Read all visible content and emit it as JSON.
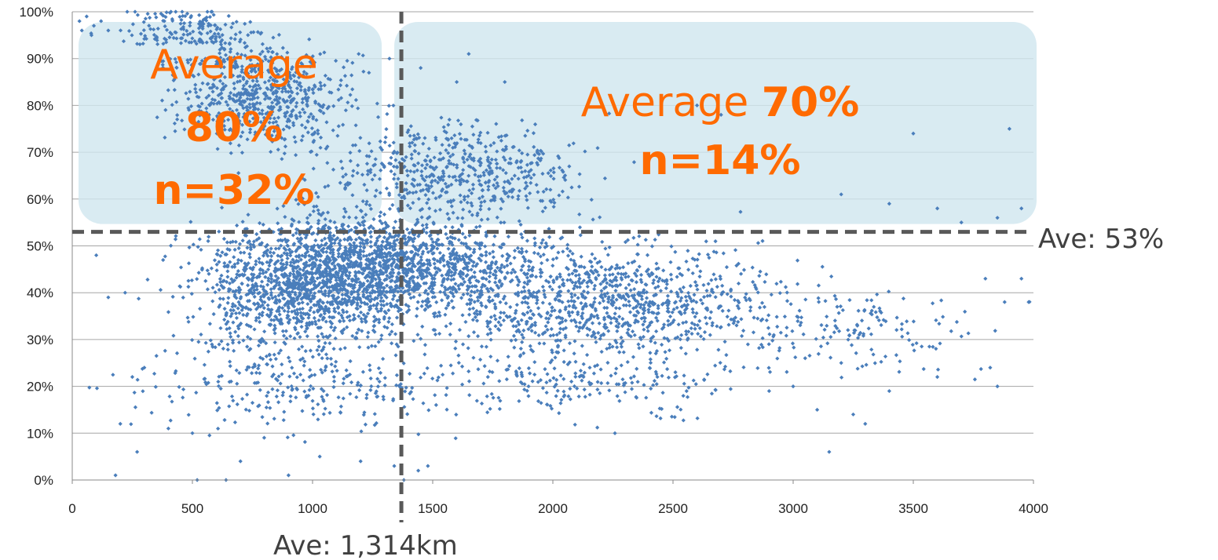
{
  "colors": {
    "point": "#4a7ebb",
    "region_fill": "#cfe6ef",
    "region_text": "#ff6a00",
    "average_line": "#595959",
    "gridline": "#a6a6a6"
  },
  "chart_data": {
    "type": "scatter",
    "title": "",
    "xlabel": "",
    "ylabel": "",
    "xlim": [
      0,
      4000
    ],
    "ylim": [
      0,
      100
    ],
    "x_ticks": [
      0,
      500,
      1000,
      1500,
      2000,
      2500,
      3000,
      3500,
      4000
    ],
    "y_ticks": [
      0,
      10,
      20,
      30,
      40,
      50,
      60,
      70,
      80,
      90,
      100
    ],
    "y_tick_labels": [
      "0%",
      "10%",
      "20%",
      "30%",
      "40%",
      "50%",
      "60%",
      "70%",
      "80%",
      "90%",
      "100%"
    ],
    "grid": true,
    "x_average": 1314,
    "y_average": 53,
    "x_average_label": "Ave: 1,314km",
    "y_average_label": "Ave: 53%",
    "regions": [
      {
        "x_range": [
          0,
          1314
        ],
        "y_range": [
          53,
          100
        ],
        "label_line1": "Average",
        "label_line2": "80%",
        "label_line3": "n=32%"
      },
      {
        "x_range": [
          1314,
          4000
        ],
        "y_range": [
          53,
          100
        ],
        "label_prefix": "Average ",
        "label_value": "70%",
        "label_n": "n=14%"
      }
    ],
    "series": [
      {
        "density_centers": [
          [
            1300,
            45
          ],
          [
            1000,
            40
          ],
          [
            2300,
            40
          ],
          [
            800,
            85
          ],
          [
            600,
            93
          ],
          [
            1500,
            62
          ]
        ],
        "points": [
          [
            30,
            98
          ],
          [
            60,
            99
          ],
          [
            90,
            97
          ],
          [
            120,
            98
          ],
          [
            150,
            96
          ],
          [
            40,
            96
          ],
          [
            80,
            95
          ],
          [
            100,
            48
          ],
          [
            150,
            39
          ],
          [
            180,
            1
          ],
          [
            200,
            12
          ],
          [
            220,
            40
          ],
          [
            250,
            22
          ],
          [
            270,
            6
          ],
          [
            300,
            24
          ],
          [
            400,
            11
          ],
          [
            500,
            10
          ],
          [
            520,
            0
          ],
          [
            640,
            0
          ],
          [
            700,
            4
          ],
          [
            900,
            1
          ],
          [
            1030,
            5
          ],
          [
            1200,
            4
          ],
          [
            1340,
            3
          ],
          [
            1380,
            0
          ],
          [
            1440,
            2
          ],
          [
            1480,
            3
          ],
          [
            1320,
            90
          ],
          [
            1450,
            88
          ],
          [
            1600,
            85
          ],
          [
            1650,
            91
          ],
          [
            1800,
            85
          ],
          [
            2600,
            80
          ],
          [
            2700,
            78
          ],
          [
            3200,
            61
          ],
          [
            3400,
            59
          ],
          [
            3500,
            74
          ],
          [
            3600,
            58
          ],
          [
            3700,
            55
          ],
          [
            3900,
            75
          ],
          [
            3950,
            58
          ],
          [
            3850,
            56
          ],
          [
            3800,
            43
          ],
          [
            3820,
            24
          ],
          [
            3850,
            20
          ],
          [
            3880,
            38
          ],
          [
            3950,
            43
          ],
          [
            3980,
            38
          ],
          [
            3100,
            15
          ],
          [
            3150,
            6
          ],
          [
            3250,
            14
          ],
          [
            3300,
            12
          ],
          [
            3400,
            19
          ],
          [
            2900,
            19
          ],
          [
            3000,
            20
          ],
          [
            3050,
            26
          ],
          [
            3200,
            25
          ],
          [
            3600,
            22
          ]
        ]
      }
    ]
  }
}
